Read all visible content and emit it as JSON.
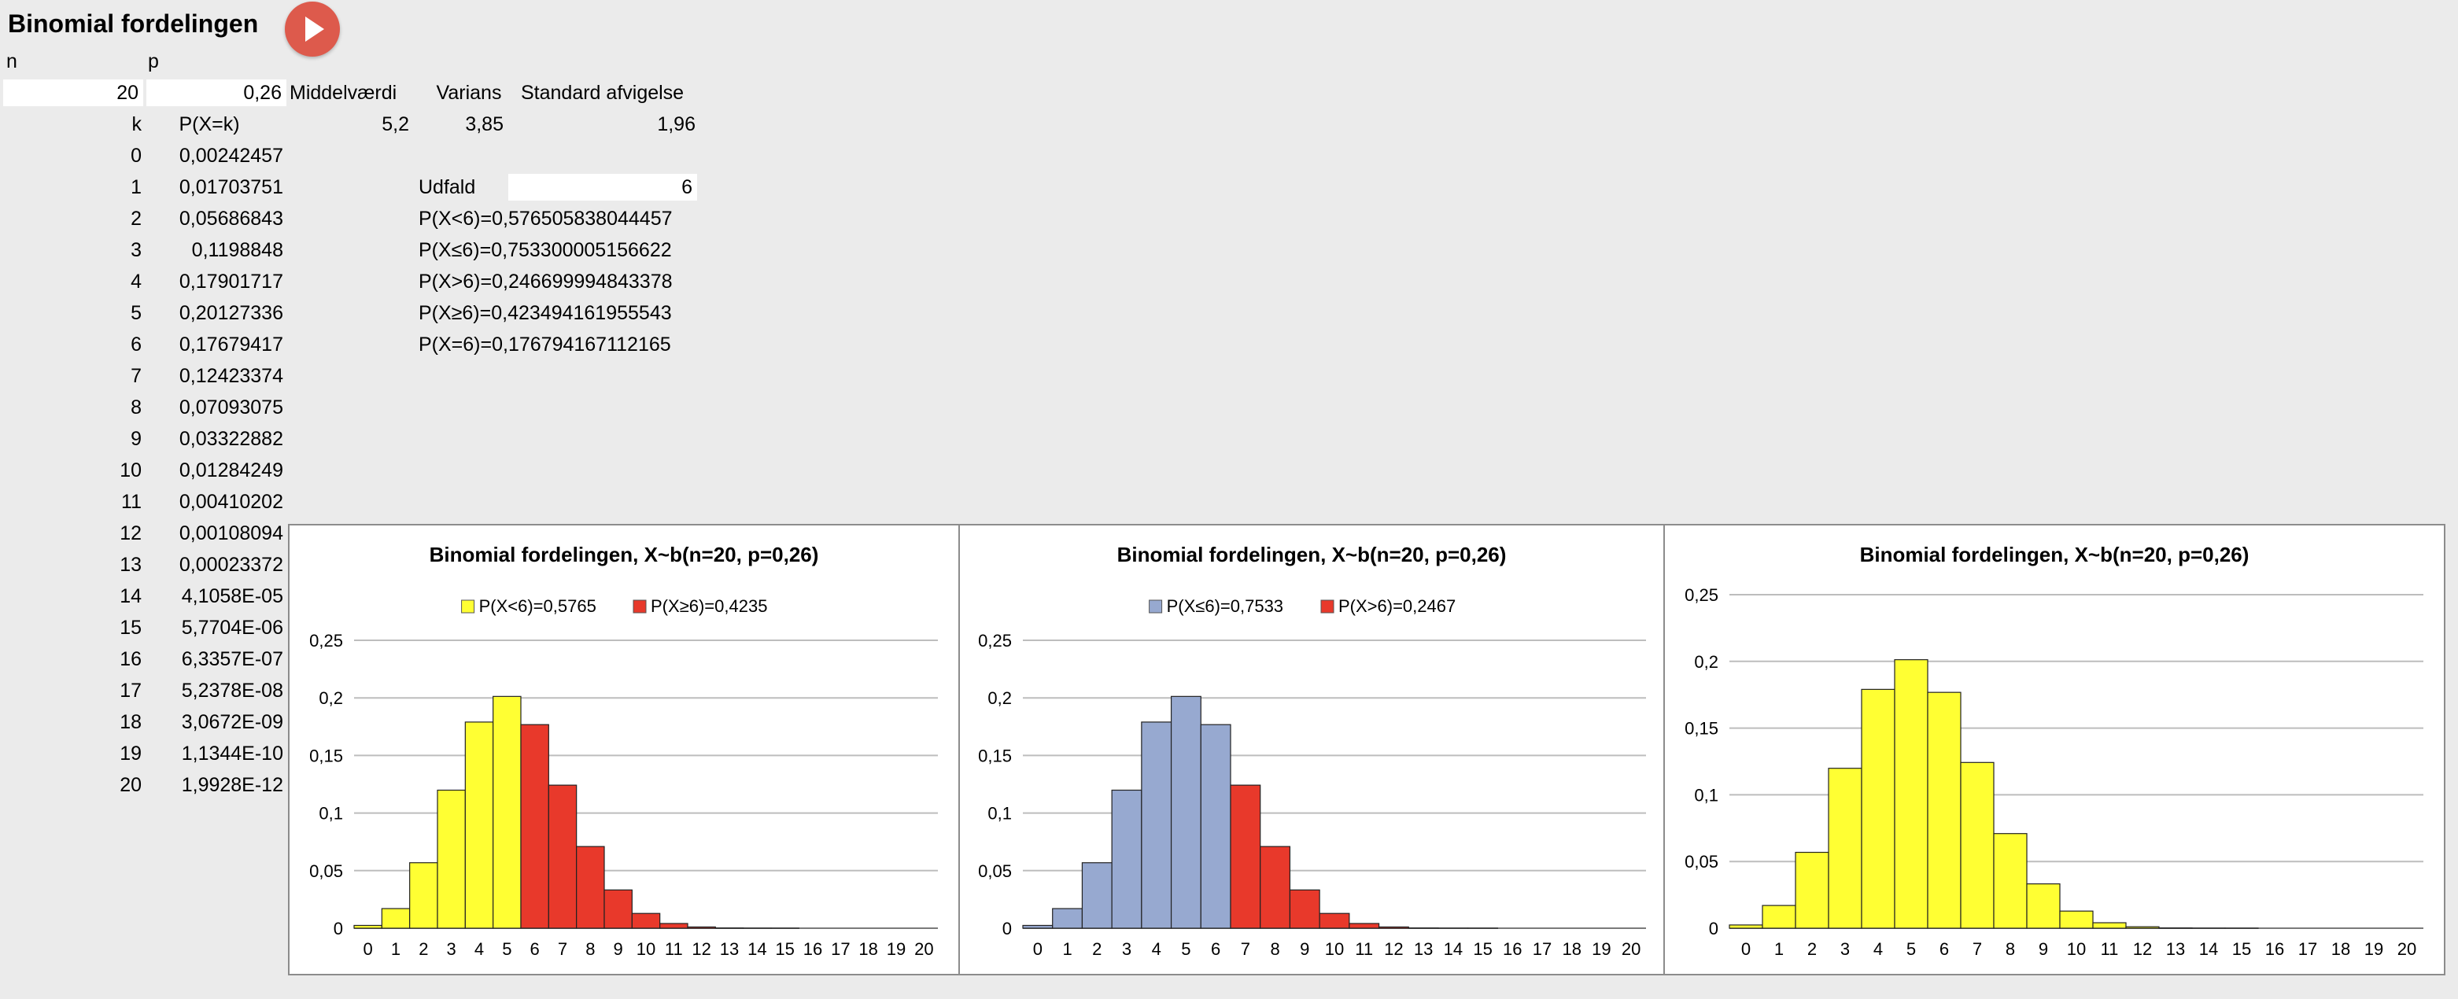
{
  "sheet": {
    "title": "Binomial fordelingen",
    "n_header": "n",
    "p_header": "p",
    "n_value": "20",
    "p_value": "0,26",
    "mean_label": "Middelværdi",
    "var_label": "Varians",
    "sd_label": "Standard afvigelse",
    "mean_value": "5,2",
    "var_value": "3,85",
    "sd_value": "1,96",
    "k_header": "k",
    "pk_header": "P(X=k)",
    "outcome_label": "Udfald",
    "outcome_value": "6",
    "probs": [
      "P(X<6)=0,576505838044457",
      "P(X≤6)=0,753300005156622",
      "P(X>6)=0,246699994843378",
      "P(X≥6)=0,423494161955543",
      "P(X=6)=0,176794167112165"
    ],
    "table": [
      {
        "k": "0",
        "p": "0,00242457"
      },
      {
        "k": "1",
        "p": "0,01703751"
      },
      {
        "k": "2",
        "p": "0,05686843"
      },
      {
        "k": "3",
        "p": "0,1198848"
      },
      {
        "k": "4",
        "p": "0,17901717"
      },
      {
        "k": "5",
        "p": "0,20127336"
      },
      {
        "k": "6",
        "p": "0,17679417"
      },
      {
        "k": "7",
        "p": "0,12423374"
      },
      {
        "k": "8",
        "p": "0,07093075"
      },
      {
        "k": "9",
        "p": "0,03322882"
      },
      {
        "k": "10",
        "p": "0,01284249"
      },
      {
        "k": "11",
        "p": "0,00410202"
      },
      {
        "k": "12",
        "p": "0,00108094"
      },
      {
        "k": "13",
        "p": "0,00023372"
      },
      {
        "k": "14",
        "p": "4,1058E-05"
      },
      {
        "k": "15",
        "p": "5,7704E-06"
      },
      {
        "k": "16",
        "p": "6,3357E-07"
      },
      {
        "k": "17",
        "p": "5,2378E-08"
      },
      {
        "k": "18",
        "p": "3,0672E-09"
      },
      {
        "k": "19",
        "p": "1,1344E-10"
      },
      {
        "k": "20",
        "p": "1,9928E-12"
      }
    ]
  },
  "chart_data": [
    {
      "type": "bar",
      "title": "Binomial fordelingen, X~b(n=20, p=0,26)",
      "categories": [
        "0",
        "1",
        "2",
        "3",
        "4",
        "5",
        "6",
        "7",
        "8",
        "9",
        "10",
        "11",
        "12",
        "13",
        "14",
        "15",
        "16",
        "17",
        "18",
        "19",
        "20"
      ],
      "series": [
        {
          "name": "P(X<6)=0,5765",
          "color": "#ffff33",
          "values": [
            0.00242,
            0.01704,
            0.05687,
            0.11988,
            0.17902,
            0.20127,
            0,
            0,
            0,
            0,
            0,
            0,
            0,
            0,
            0,
            0,
            0,
            0,
            0,
            0,
            0
          ]
        },
        {
          "name": "P(X≥6)=0,4235",
          "color": "#e8392b",
          "values": [
            0,
            0,
            0,
            0,
            0,
            0,
            0.17679,
            0.12423,
            0.07093,
            0.03323,
            0.01284,
            0.0041,
            0.00108,
            0.00023,
            4e-05,
            1e-05,
            0,
            0,
            0,
            0,
            0
          ]
        }
      ],
      "ylim": [
        0,
        0.25
      ],
      "yticks": [
        "0",
        "0,05",
        "0,1",
        "0,15",
        "0,2",
        "0,25"
      ],
      "grid": true,
      "legend": "top"
    },
    {
      "type": "bar",
      "title": "Binomial fordelingen, X~b(n=20, p=0,26)",
      "categories": [
        "0",
        "1",
        "2",
        "3",
        "4",
        "5",
        "6",
        "7",
        "8",
        "9",
        "10",
        "11",
        "12",
        "13",
        "14",
        "15",
        "16",
        "17",
        "18",
        "19",
        "20"
      ],
      "series": [
        {
          "name": "P(X≤6)=0,7533",
          "color": "#97a9d0",
          "values": [
            0.00242,
            0.01704,
            0.05687,
            0.11988,
            0.17902,
            0.20127,
            0.17679,
            0,
            0,
            0,
            0,
            0,
            0,
            0,
            0,
            0,
            0,
            0,
            0,
            0,
            0
          ]
        },
        {
          "name": "P(X>6)=0,2467",
          "color": "#e8392b",
          "values": [
            0,
            0,
            0,
            0,
            0,
            0,
            0,
            0.12423,
            0.07093,
            0.03323,
            0.01284,
            0.0041,
            0.00108,
            0.00023,
            4e-05,
            1e-05,
            0,
            0,
            0,
            0,
            0
          ]
        }
      ],
      "ylim": [
        0,
        0.25
      ],
      "yticks": [
        "0",
        "0,05",
        "0,1",
        "0,15",
        "0,2",
        "0,25"
      ],
      "grid": true,
      "legend": "top"
    },
    {
      "type": "bar",
      "title": "Binomial fordelingen, X~b(n=20, p=0,26)",
      "categories": [
        "0",
        "1",
        "2",
        "3",
        "4",
        "5",
        "6",
        "7",
        "8",
        "9",
        "10",
        "11",
        "12",
        "13",
        "14",
        "15",
        "16",
        "17",
        "18",
        "19",
        "20"
      ],
      "series": [
        {
          "name": "",
          "color": "#ffff33",
          "values": [
            0.00242,
            0.01704,
            0.05687,
            0.11988,
            0.17902,
            0.20127,
            0.17679,
            0.12423,
            0.07093,
            0.03323,
            0.01284,
            0.0041,
            0.00108,
            0.00023,
            4e-05,
            1e-05,
            0,
            0,
            0,
            0,
            0
          ]
        }
      ],
      "ylim": [
        0,
        0.25
      ],
      "yticks": [
        "0",
        "0,05",
        "0,1",
        "0,15",
        "0,2",
        "0,25"
      ],
      "grid": true,
      "legend": "none"
    }
  ]
}
